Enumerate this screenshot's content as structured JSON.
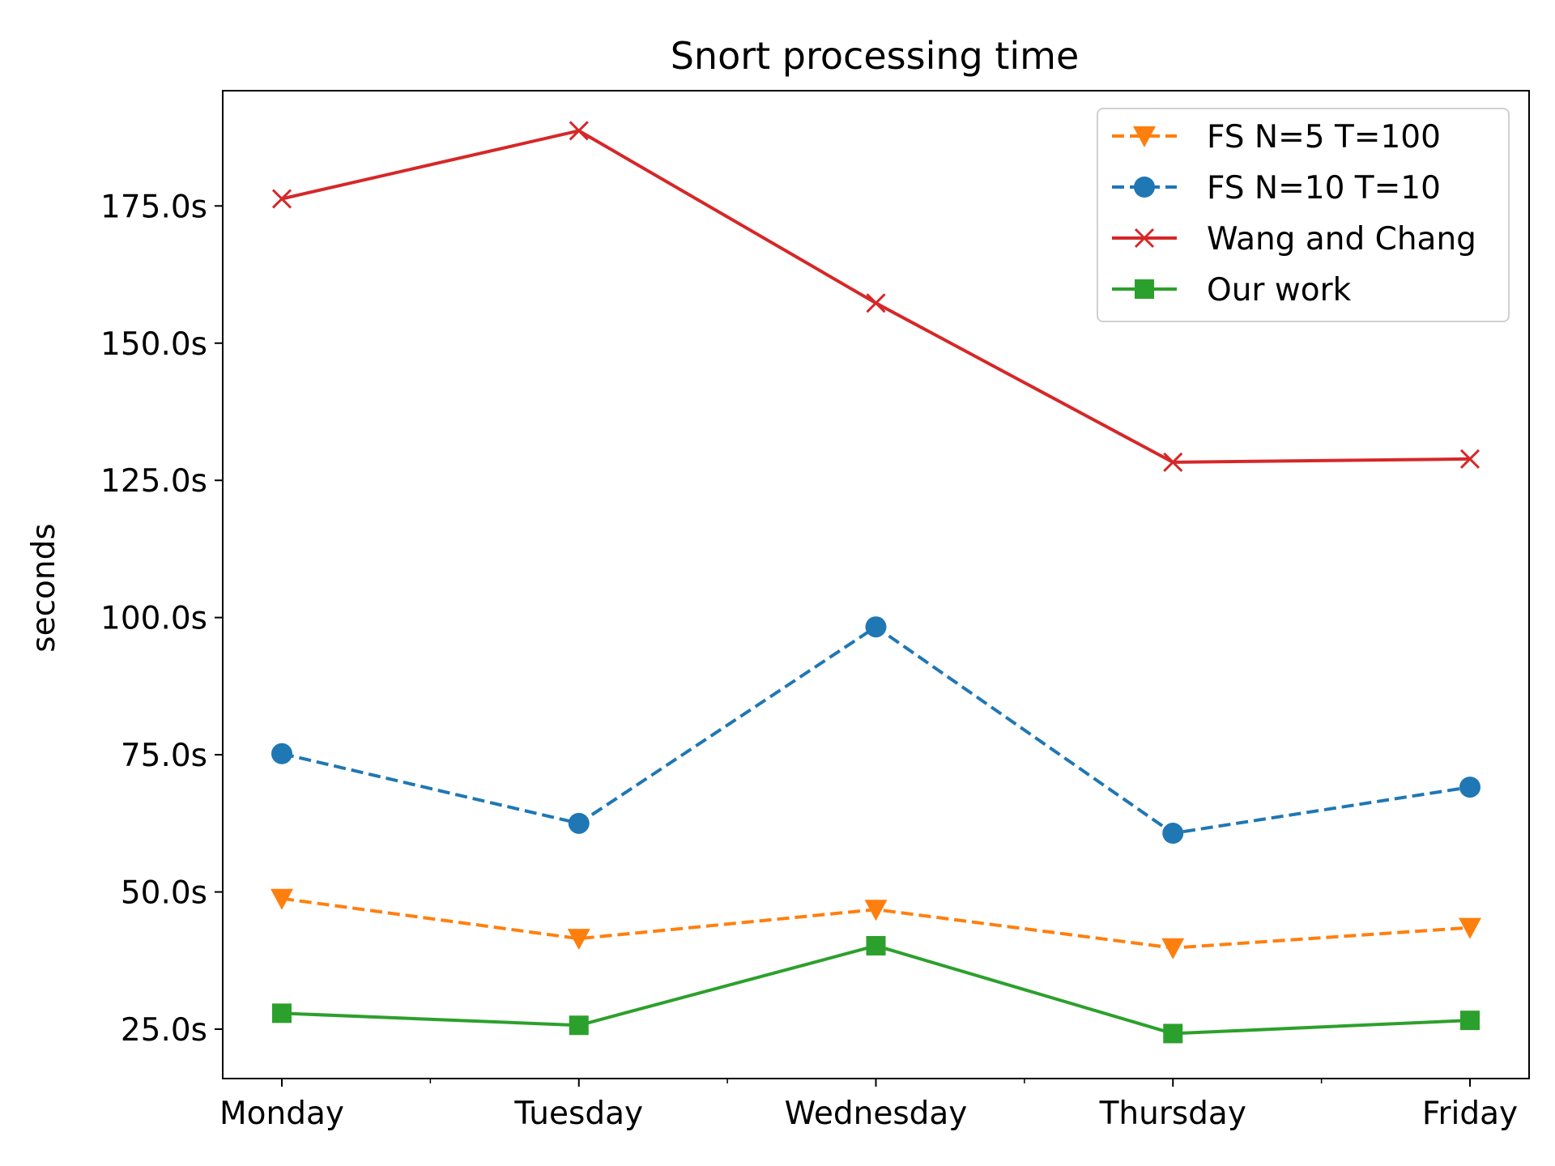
{
  "chart_data": {
    "type": "line",
    "title": "Snort processing time",
    "xlabel": "",
    "ylabel": "seconds",
    "categories": [
      "Monday",
      "Tuesday",
      "Wednesday",
      "Thursday",
      "Friday"
    ],
    "ylim": [
      16,
      196
    ],
    "yticks": [
      25,
      50,
      75,
      100,
      125,
      150,
      175
    ],
    "ytick_labels": [
      "25.0s",
      "50.0s",
      "75.0s",
      "100.0s",
      "125.0s",
      "150.0s",
      "175.0s"
    ],
    "grid": false,
    "legend_position": "top-right",
    "series": [
      {
        "name": "FS N=5 T=100",
        "color": "#ff7f0e",
        "linestyle": "dashed",
        "marker": "triangle-down",
        "values": [
          48.8,
          41.5,
          46.8,
          39.8,
          43.5
        ]
      },
      {
        "name": "FS N=10 T=10",
        "color": "#1f77b4",
        "linestyle": "dashed",
        "marker": "circle",
        "values": [
          75.2,
          62.5,
          98.3,
          60.7,
          69.1
        ]
      },
      {
        "name": "Wang and Chang",
        "color": "#d62728",
        "linestyle": "solid",
        "marker": "x",
        "values": [
          176.3,
          188.7,
          157.3,
          128.3,
          128.9
        ]
      },
      {
        "name": "Our work",
        "color": "#2ca02c",
        "linestyle": "solid",
        "marker": "square",
        "values": [
          27.9,
          25.7,
          40.2,
          24.2,
          26.6
        ]
      }
    ]
  }
}
